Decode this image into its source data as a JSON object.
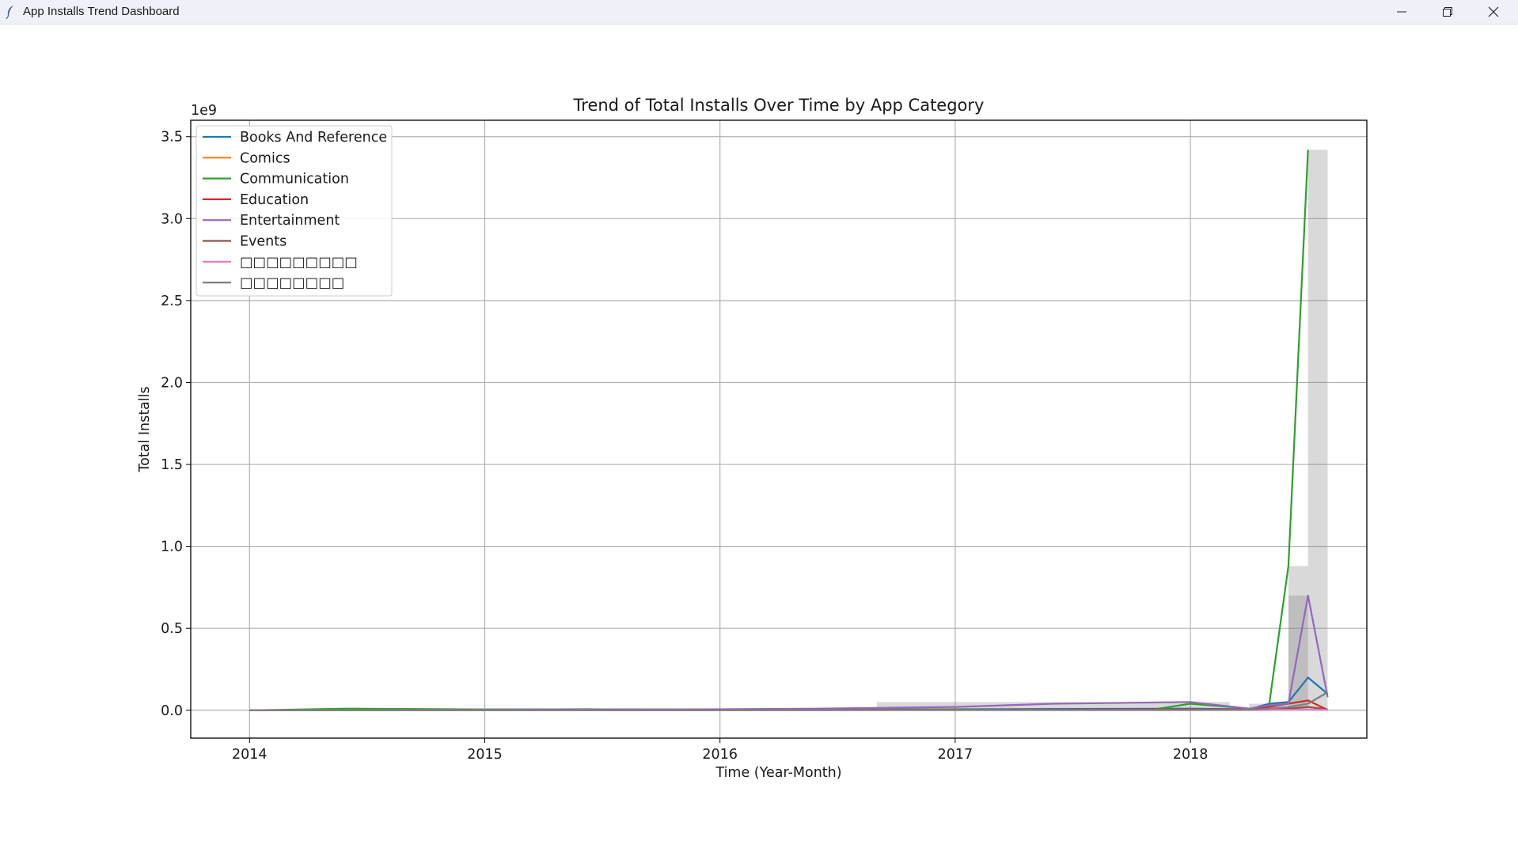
{
  "window": {
    "title": "App Installs Trend Dashboard",
    "icons": {
      "app": "feather-icon",
      "minimize": "minimize-icon",
      "restore": "restore-icon",
      "close": "close-icon"
    }
  },
  "chart_data": {
    "type": "line",
    "title": "Trend of Total Installs Over Time by App Category",
    "xlabel": "Time (Year-Month)",
    "ylabel": "Total Installs",
    "y_offset_text": "1e9",
    "xlim": [
      "2013-10",
      "2018-10"
    ],
    "ylim": [
      -0.17,
      3.6
    ],
    "x_ticks": [
      {
        "value": "2014-01",
        "label": "2014"
      },
      {
        "value": "2015-01",
        "label": "2015"
      },
      {
        "value": "2016-01",
        "label": "2016"
      },
      {
        "value": "2017-01",
        "label": "2017"
      },
      {
        "value": "2018-01",
        "label": "2018"
      }
    ],
    "y_ticks": [
      {
        "value": 0.0,
        "label": "0.0"
      },
      {
        "value": 0.5,
        "label": "0.5"
      },
      {
        "value": 1.0,
        "label": "1.0"
      },
      {
        "value": 1.5,
        "label": "1.5"
      },
      {
        "value": 2.0,
        "label": "2.0"
      },
      {
        "value": 2.5,
        "label": "2.5"
      },
      {
        "value": 3.0,
        "label": "3.0"
      },
      {
        "value": 3.5,
        "label": "3.5"
      }
    ],
    "grid": true,
    "legend_position": "top-left",
    "series": [
      {
        "name": "Books And Reference",
        "color": "#1f77b4",
        "points": [
          [
            "2014-01",
            0
          ],
          [
            "2014-06",
            0.002
          ],
          [
            "2015-01",
            0.004
          ],
          [
            "2015-06",
            0.006
          ],
          [
            "2016-01",
            0.004
          ],
          [
            "2016-06",
            0.004
          ],
          [
            "2017-01",
            0.006
          ],
          [
            "2017-06",
            0.008
          ],
          [
            "2018-01",
            0.01
          ],
          [
            "2018-04",
            0.006
          ],
          [
            "2018-05",
            0.04
          ],
          [
            "2018-06",
            0.05
          ],
          [
            "2018-07",
            0.2
          ],
          [
            "2018-08",
            0.1
          ]
        ]
      },
      {
        "name": "Comics",
        "color": "#ff7f0e",
        "points": [
          [
            "2014-01",
            0
          ],
          [
            "2015-01",
            0.001
          ],
          [
            "2016-01",
            0.002
          ],
          [
            "2017-01",
            0.003
          ],
          [
            "2018-01",
            0.004
          ],
          [
            "2018-04",
            0.002
          ],
          [
            "2018-05",
            0.006
          ],
          [
            "2018-06",
            0.01
          ],
          [
            "2018-07",
            0.02
          ],
          [
            "2018-08",
            0.005
          ]
        ]
      },
      {
        "name": "Communication",
        "color": "#2ca02c",
        "points": [
          [
            "2014-01",
            0
          ],
          [
            "2014-06",
            0.01
          ],
          [
            "2015-01",
            0.005
          ],
          [
            "2015-06",
            0.004
          ],
          [
            "2016-01",
            0.003
          ],
          [
            "2016-06",
            0.004
          ],
          [
            "2017-01",
            0.005
          ],
          [
            "2017-06",
            0.002
          ],
          [
            "2017-11",
            0.003
          ],
          [
            "2018-01",
            0.04
          ],
          [
            "2018-04",
            0.01
          ],
          [
            "2018-05",
            0.02
          ],
          [
            "2018-06",
            0.88
          ],
          [
            "2018-07",
            3.42
          ]
        ]
      },
      {
        "name": "Education",
        "color": "#d62728",
        "points": [
          [
            "2014-01",
            0
          ],
          [
            "2015-01",
            0.002
          ],
          [
            "2016-01",
            0.002
          ],
          [
            "2017-01",
            0.003
          ],
          [
            "2018-01",
            0.005
          ],
          [
            "2018-04",
            0.005
          ],
          [
            "2018-05",
            0.02
          ],
          [
            "2018-06",
            0.04
          ],
          [
            "2018-07",
            0.06
          ],
          [
            "2018-08",
            0.002
          ]
        ]
      },
      {
        "name": "Entertainment",
        "color": "#9467bd",
        "points": [
          [
            "2014-01",
            0
          ],
          [
            "2015-01",
            0.003
          ],
          [
            "2016-01",
            0.006
          ],
          [
            "2016-06",
            0.01
          ],
          [
            "2017-01",
            0.02
          ],
          [
            "2017-06",
            0.04
          ],
          [
            "2018-01",
            0.05
          ],
          [
            "2018-04",
            0.01
          ],
          [
            "2018-05",
            0.03
          ],
          [
            "2018-06",
            0.04
          ],
          [
            "2018-07",
            0.7
          ],
          [
            "2018-08",
            0.08
          ]
        ]
      },
      {
        "name": "Events",
        "color": "#8c564b",
        "points": [
          [
            "2014-01",
            0
          ],
          [
            "2015-01",
            0.001
          ],
          [
            "2016-01",
            0.001
          ],
          [
            "2017-01",
            0.002
          ],
          [
            "2018-01",
            0.002
          ],
          [
            "2018-04",
            0.002
          ],
          [
            "2018-05",
            0.005
          ],
          [
            "2018-06",
            0.01
          ],
          [
            "2018-07",
            0.02
          ],
          [
            "2018-08",
            0.005
          ]
        ]
      },
      {
        "name": "□□□□□□□□□",
        "color": "#e377c2",
        "points": [
          [
            "2014-01",
            0
          ],
          [
            "2016-01",
            0.001
          ],
          [
            "2018-01",
            0.001
          ],
          [
            "2018-05",
            0.002
          ],
          [
            "2018-06",
            0.003
          ],
          [
            "2018-07",
            0.004
          ],
          [
            "2018-08",
            0.002
          ]
        ]
      },
      {
        "name": "□□□□□□□□",
        "color": "#7f7f7f",
        "points": [
          [
            "2014-01",
            0
          ],
          [
            "2016-01",
            0.001
          ],
          [
            "2017-01",
            0.002
          ],
          [
            "2018-01",
            0.002
          ],
          [
            "2018-04",
            0.002
          ],
          [
            "2018-05",
            0.01
          ],
          [
            "2018-06",
            0.02
          ],
          [
            "2018-07",
            0.04
          ],
          [
            "2018-08",
            0.11
          ]
        ]
      }
    ],
    "shaded_bars": [
      {
        "start": "2016-09",
        "end": "2018-03",
        "value": 0.05
      },
      {
        "start": "2018-04",
        "end": "2018-06",
        "value": 0.04
      },
      {
        "start": "2018-06",
        "end": "2018-07",
        "value": 0.88
      },
      {
        "start": "2018-06",
        "end": "2018-07",
        "value": 0.7
      },
      {
        "start": "2018-07",
        "end": "2018-08",
        "value": 3.42
      }
    ]
  }
}
